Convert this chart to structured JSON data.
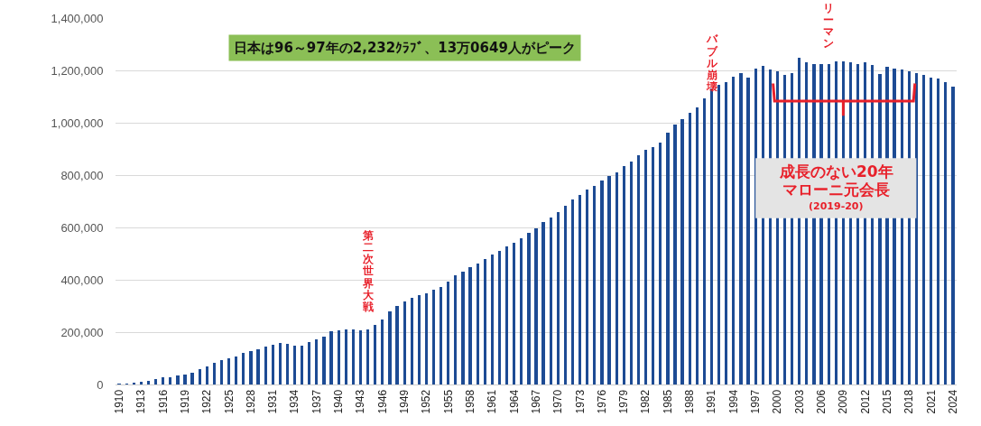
{
  "chart_data": {
    "type": "bar",
    "color": "#1d4b94",
    "categories": [
      "1910",
      null,
      null,
      "1913",
      null,
      null,
      "1916",
      null,
      null,
      "1919",
      null,
      null,
      "1922",
      null,
      null,
      "1925",
      null,
      null,
      "1928",
      null,
      null,
      "1931",
      null,
      null,
      "1934",
      null,
      null,
      "1937",
      null,
      null,
      "1940",
      null,
      null,
      "1943",
      null,
      null,
      "1946",
      null,
      null,
      "1949",
      null,
      null,
      "1952",
      null,
      null,
      "1955",
      null,
      null,
      "1958",
      null,
      null,
      "1961",
      null,
      null,
      "1964",
      null,
      null,
      "1967",
      null,
      null,
      "1970",
      null,
      null,
      "1973",
      null,
      null,
      "1976",
      null,
      null,
      "1979",
      null,
      null,
      "1982",
      null,
      null,
      "1985",
      null,
      null,
      "1988",
      null,
      null,
      "1991",
      null,
      null,
      "1994",
      null,
      null,
      "1997",
      null,
      null,
      "2000",
      null,
      null,
      "2003",
      null,
      null,
      "2006",
      null,
      null,
      "2009",
      null,
      null,
      "2012",
      null,
      null,
      "2015",
      null,
      null,
      "2018",
      null,
      null,
      "2021",
      null,
      null,
      "2024"
    ],
    "values": [
      1000,
      2000,
      5000,
      9000,
      13000,
      20000,
      26000,
      27000,
      33000,
      38000,
      46000,
      57000,
      68000,
      83000,
      94000,
      101000,
      106000,
      120000,
      128000,
      136000,
      145000,
      153000,
      157000,
      155000,
      147000,
      150000,
      162000,
      172000,
      183000,
      202000,
      208000,
      212000,
      211000,
      208000,
      209000,
      228000,
      248000,
      278000,
      299000,
      317000,
      330000,
      341000,
      349000,
      361000,
      374000,
      392000,
      418000,
      431000,
      448000,
      462000,
      479000,
      497000,
      510000,
      528000,
      543000,
      557000,
      580000,
      598000,
      621000,
      638000,
      660000,
      682000,
      707000,
      723000,
      744000,
      760000,
      778000,
      797000,
      811000,
      834000,
      852000,
      876000,
      895000,
      907000,
      924000,
      962000,
      992000,
      1013000,
      1038000,
      1059000,
      1093000,
      1130000,
      1144000,
      1156000,
      1175000,
      1191000,
      1172000,
      1207000,
      1216000,
      1202000,
      1195000,
      1184000,
      1191000,
      1247000,
      1231000,
      1225000,
      1223000,
      1225000,
      1234000,
      1235000,
      1230000,
      1225000,
      1230000,
      1222000,
      1187000,
      1213000,
      1207000,
      1204000,
      1197000,
      1191000,
      1182000,
      1172000,
      1168000,
      1155000,
      1137000
    ],
    "ylim": [
      0,
      1400000
    ],
    "yticks": [
      {
        "value": 0,
        "label": "0"
      },
      {
        "value": 200000,
        "label": "200,000"
      },
      {
        "value": 400000,
        "label": "400,000"
      },
      {
        "value": 600000,
        "label": "600,000"
      },
      {
        "value": 800000,
        "label": "800,000"
      },
      {
        "value": 1000000,
        "label": "1,000,000"
      },
      {
        "value": 1200000,
        "label": "1,200,000"
      },
      {
        "value": 1400000,
        "label": "1,400,000"
      }
    ],
    "grid": "y",
    "annotations": [
      "日本は96～97年の2,232ｸﾗﾌﾞ、13万0649人がピーク",
      "成長のない20年",
      "マローニ元会長",
      "(2019-20)",
      "第二次世界大戦",
      "バブル崩壊",
      "リーマン"
    ]
  }
}
